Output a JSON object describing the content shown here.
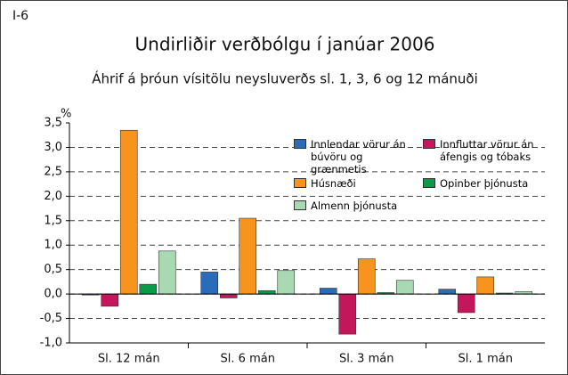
{
  "chart_data": {
    "type": "bar",
    "label": "I-6",
    "title": "Undirliðir verðbólgu í janúar 2006",
    "subtitle": "Áhrif á þróun vísitölu neysluverðs sl. 1, 3, 6 og 12 mánuði",
    "y_label": "%",
    "categories": [
      "Sl. 12 mán",
      "Sl. 6 mán",
      "Sl. 3 mán",
      "Sl. 1 mán"
    ],
    "series": [
      {
        "name": "Innlendar vörur án búvöru og grænmetis",
        "color": "#2b6cb8",
        "values": [
          -0.02,
          0.45,
          0.12,
          0.1
        ]
      },
      {
        "name": "Innfluttar vörur án áfengis og tóbaks",
        "color": "#c2185b",
        "values": [
          -0.25,
          -0.08,
          -0.82,
          -0.38
        ]
      },
      {
        "name": "Húsnæði",
        "color": "#f7941d",
        "values": [
          3.35,
          1.55,
          0.72,
          0.35
        ]
      },
      {
        "name": "Opinber þjónusta",
        "color": "#0a9a48",
        "values": [
          0.2,
          0.07,
          0.03,
          0.02
        ]
      },
      {
        "name": "Almenn þjónusta",
        "color": "#a9d9b3",
        "values": [
          0.88,
          0.48,
          0.28,
          0.05
        ]
      }
    ],
    "ylim": [
      -1.0,
      3.5
    ],
    "yticks": [
      {
        "value": -1.0,
        "label": "-1,0"
      },
      {
        "value": -0.5,
        "label": "-0,5"
      },
      {
        "value": 0,
        "label": "0,0"
      },
      {
        "value": 0.5,
        "label": "0,5"
      },
      {
        "value": 1.0,
        "label": "1,0"
      },
      {
        "value": 1.5,
        "label": "1,5"
      },
      {
        "value": 2.0,
        "label": "2,0"
      },
      {
        "value": 2.5,
        "label": "2,5"
      },
      {
        "value": 3.0,
        "label": "3,0"
      },
      {
        "value": 3.5,
        "label": "3,5"
      }
    ],
    "grid": true
  }
}
